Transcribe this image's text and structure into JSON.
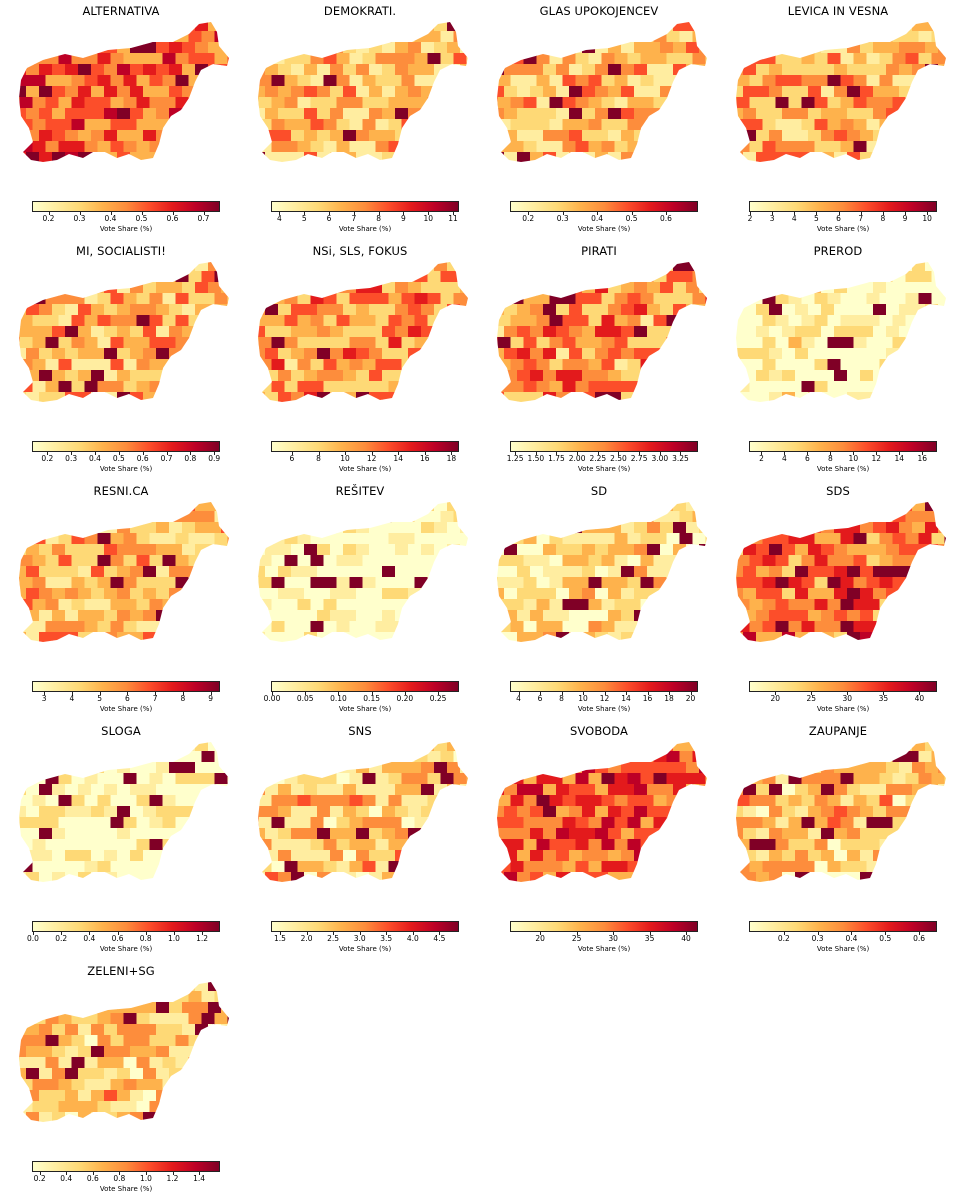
{
  "colorbar_label": "Vote Share (%)",
  "colormap": [
    "#ffffcc",
    "#ffeda0",
    "#fed976",
    "#feb24c",
    "#fd8d3c",
    "#fc4e2a",
    "#e31a1c",
    "#bd0026",
    "#800026"
  ],
  "panels": [
    {
      "title": "ALTERNATIVA",
      "range": [
        0.15,
        0.75
      ],
      "ticks": [
        "0.2",
        "0.3",
        "0.4",
        "0.5",
        "0.6",
        "0.7"
      ],
      "tick_values": [
        0.2,
        0.3,
        0.4,
        0.5,
        0.6,
        0.7
      ],
      "level": 0.6
    },
    {
      "title": "DEMOKRATI.",
      "range": [
        3.7,
        11.2
      ],
      "ticks": [
        "4",
        "5",
        "6",
        "7",
        "8",
        "9",
        "10",
        "11"
      ],
      "tick_values": [
        4,
        5,
        6,
        7,
        8,
        9,
        10,
        11
      ],
      "level": 0.35
    },
    {
      "title": "GLAS UPOKOJENCEV",
      "range": [
        0.15,
        0.69
      ],
      "ticks": [
        "0.2",
        "0.3",
        "0.4",
        "0.5",
        "0.6"
      ],
      "tick_values": [
        0.2,
        0.3,
        0.4,
        0.5,
        0.6
      ],
      "level": 0.35
    },
    {
      "title": "LEVICA IN VESNA",
      "range": [
        2.0,
        10.4
      ],
      "ticks": [
        "2",
        "3",
        "4",
        "5",
        "6",
        "7",
        "8",
        "9",
        "10"
      ],
      "tick_values": [
        2,
        3,
        4,
        5,
        6,
        7,
        8,
        9,
        10
      ],
      "level": 0.4
    },
    {
      "title": "MI, SOCIALISTI!",
      "range": [
        0.14,
        0.92
      ],
      "ticks": [
        "0.2",
        "0.3",
        "0.4",
        "0.5",
        "0.6",
        "0.7",
        "0.8",
        "0.9"
      ],
      "tick_values": [
        0.2,
        0.3,
        0.4,
        0.5,
        0.6,
        0.7,
        0.8,
        0.9
      ],
      "level": 0.4
    },
    {
      "title": "NSi, SLS, FOKUS",
      "range": [
        4.5,
        18.5
      ],
      "ticks": [
        "6",
        "8",
        "10",
        "12",
        "14",
        "16",
        "18"
      ],
      "tick_values": [
        6,
        8,
        10,
        12,
        14,
        16,
        18
      ],
      "level": 0.45
    },
    {
      "title": "PIRATI",
      "range": [
        1.2,
        3.45
      ],
      "ticks": [
        "1.25",
        "1.50",
        "1.75",
        "2.00",
        "2.25",
        "2.50",
        "2.75",
        "3.00",
        "3.25"
      ],
      "tick_values": [
        1.25,
        1.5,
        1.75,
        2.0,
        2.25,
        2.5,
        2.75,
        3.0,
        3.25
      ],
      "level": 0.45
    },
    {
      "title": "PREROD",
      "range": [
        1.0,
        17.2
      ],
      "ticks": [
        "2",
        "4",
        "6",
        "8",
        "10",
        "12",
        "14",
        "16"
      ],
      "tick_values": [
        2,
        4,
        6,
        8,
        10,
        12,
        14,
        16
      ],
      "level": 0.05
    },
    {
      "title": "RESNI.CA",
      "range": [
        2.6,
        9.3
      ],
      "ticks": [
        "3",
        "4",
        "5",
        "6",
        "7",
        "8",
        "9"
      ],
      "tick_values": [
        3,
        4,
        5,
        6,
        7,
        8,
        9
      ],
      "level": 0.35
    },
    {
      "title": "REŠITEV",
      "range": [
        0.0,
        0.28
      ],
      "ticks": [
        "0.00",
        "0.05",
        "0.10",
        "0.15",
        "0.20",
        "0.25"
      ],
      "tick_values": [
        0,
        0.05,
        0.1,
        0.15,
        0.2,
        0.25
      ],
      "level": 0.0
    },
    {
      "title": "SD",
      "range": [
        3.3,
        20.6
      ],
      "ticks": [
        "4",
        "6",
        "8",
        "10",
        "12",
        "14",
        "16",
        "18",
        "20"
      ],
      "tick_values": [
        4,
        6,
        8,
        10,
        12,
        14,
        16,
        18,
        20
      ],
      "level": 0.2
    },
    {
      "title": "SDS",
      "range": [
        16.5,
        42.3
      ],
      "ticks": [
        "20",
        "25",
        "30",
        "35",
        "40"
      ],
      "tick_values": [
        20,
        25,
        30,
        35,
        40
      ],
      "level": 0.55
    },
    {
      "title": "SLOGA",
      "range": [
        0.0,
        1.32
      ],
      "ticks": [
        "0.0",
        "0.2",
        "0.4",
        "0.6",
        "0.8",
        "1.0",
        "1.2"
      ],
      "tick_values": [
        0,
        0.2,
        0.4,
        0.6,
        0.8,
        1.0,
        1.2
      ],
      "level": 0.02
    },
    {
      "title": "SNS",
      "range": [
        1.35,
        4.85
      ],
      "ticks": [
        "1.5",
        "2.0",
        "2.5",
        "3.0",
        "3.5",
        "4.0",
        "4.5"
      ],
      "tick_values": [
        1.5,
        2.0,
        2.5,
        3.0,
        3.5,
        4.0,
        4.5
      ],
      "level": 0.3
    },
    {
      "title": "SVOBODA",
      "range": [
        16.0,
        41.5
      ],
      "ticks": [
        "20",
        "25",
        "30",
        "35",
        "40"
      ],
      "tick_values": [
        20,
        25,
        30,
        35,
        40
      ],
      "level": 0.6
    },
    {
      "title": "ZAUPANJE",
      "range": [
        0.1,
        0.65
      ],
      "ticks": [
        "0.2",
        "0.3",
        "0.4",
        "0.5",
        "0.6"
      ],
      "tick_values": [
        0.2,
        0.3,
        0.4,
        0.5,
        0.6
      ],
      "level": 0.3
    },
    {
      "title": "ZELENI+SG",
      "range": [
        0.15,
        1.55
      ],
      "ticks": [
        "0.2",
        "0.4",
        "0.6",
        "0.8",
        "1.0",
        "1.2",
        "1.4"
      ],
      "tick_values": [
        0.2,
        0.4,
        0.6,
        0.8,
        1.0,
        1.2,
        1.4
      ],
      "level": 0.3
    }
  ]
}
